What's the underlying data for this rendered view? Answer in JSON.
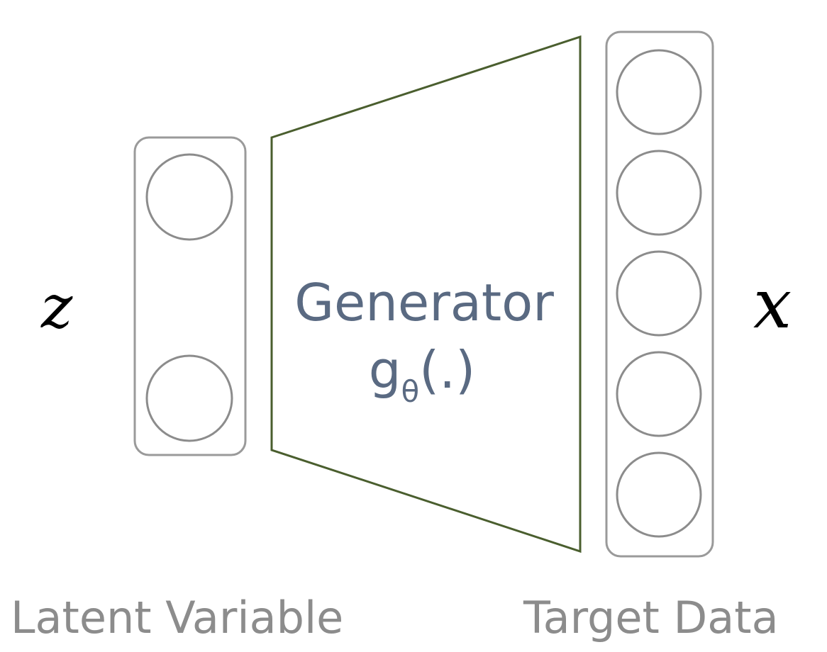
{
  "latent": {
    "symbol": "z",
    "caption": "Latent Variable",
    "node_count": 2
  },
  "generator": {
    "title": "Generator",
    "func_base": "g",
    "func_subscript": "θ",
    "func_args": "(.)"
  },
  "target": {
    "symbol": "x",
    "caption": "Target Data",
    "node_count": 5
  },
  "colors": {
    "node_stroke": "#8c8c8c",
    "box_stroke": "#9a9a9a",
    "trapezoid_stroke": "#4a5e2e",
    "generator_text": "#5a6a82",
    "caption_text": "#8c8c8c",
    "math_text": "#000000"
  }
}
